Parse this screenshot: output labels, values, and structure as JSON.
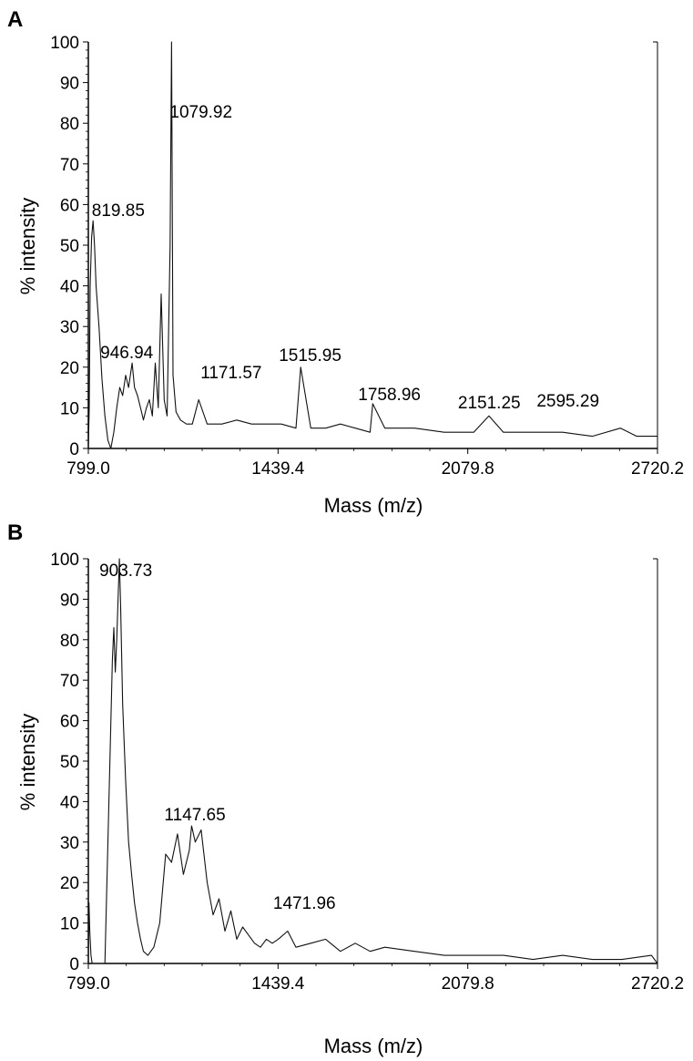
{
  "chart_data": [
    {
      "panel": "A",
      "type": "line",
      "xlabel": "Mass (m/z)",
      "ylabel": "% intensity",
      "xlim": [
        799.0,
        2720.2
      ],
      "ylim": [
        0,
        100
      ],
      "x_ticks": [
        "799.0",
        "1439.4",
        "2079.8",
        "2720.2"
      ],
      "y_ticks": [
        "0",
        "10",
        "20",
        "30",
        "40",
        "50",
        "60",
        "70",
        "80",
        "90",
        "100"
      ],
      "series": [
        {
          "x": [
            799,
            802,
            805,
            810,
            815,
            819.85,
            825,
            835,
            845,
            855,
            865,
            875,
            885,
            895,
            905,
            915,
            925,
            935,
            946.94,
            955,
            965,
            975,
            985,
            995,
            1005,
            1015,
            1025,
            1035,
            1045,
            1055,
            1065,
            1075,
            1079.92,
            1085,
            1095,
            1110,
            1130,
            1150,
            1171.57,
            1200,
            1250,
            1300,
            1350,
            1400,
            1450,
            1500,
            1515.95,
            1550,
            1600,
            1650,
            1700,
            1750,
            1758.96,
            1800,
            1900,
            2000,
            2100,
            2151.25,
            2200,
            2300,
            2400,
            2500,
            2595.29,
            2650,
            2700,
            2720.2
          ],
          "y": [
            0,
            10,
            40,
            52,
            56,
            50,
            40,
            30,
            17,
            8,
            2,
            0,
            4,
            10,
            15,
            13,
            18,
            15,
            21,
            15,
            13,
            10,
            7,
            10,
            12,
            8,
            21,
            10,
            38,
            12,
            8,
            50,
            100,
            18,
            9,
            7,
            6,
            6,
            12,
            6,
            6,
            7,
            6,
            6,
            6,
            5,
            20,
            5,
            5,
            6,
            5,
            4,
            11,
            5,
            5,
            4,
            4,
            8,
            4,
            4,
            4,
            3,
            5,
            3,
            3,
            3
          ]
        }
      ],
      "annotations": [
        {
          "text": "819.85",
          "x": 819.85
        },
        {
          "text": "1079.92",
          "x": 1079.92
        },
        {
          "text": "946.94",
          "x": 946.94
        },
        {
          "text": "1171.57",
          "x": 1171.57
        },
        {
          "text": "1515.95",
          "x": 1515.95
        },
        {
          "text": "1758.96",
          "x": 1758.96
        },
        {
          "text": "2151.25",
          "x": 2151.25
        },
        {
          "text": "2595.29",
          "x": 2595.29
        }
      ],
      "grid": false,
      "legend": "none"
    },
    {
      "panel": "B",
      "type": "line",
      "xlabel": "Mass (m/z)",
      "ylabel": "% intensity",
      "xlim": [
        799.0,
        2720.2
      ],
      "ylim": [
        0,
        100
      ],
      "x_ticks": [
        "799.0",
        "1439.4",
        "2079.8",
        "2720.2"
      ],
      "y_ticks": [
        "0",
        "10",
        "20",
        "30",
        "40",
        "50",
        "60",
        "70",
        "80",
        "90",
        "100"
      ],
      "series": [
        {
          "x": [
            799,
            801,
            804,
            808,
            812,
            820,
            840,
            855,
            865,
            872,
            880,
            885,
            890,
            895,
            903.73,
            908,
            915,
            925,
            935,
            945,
            955,
            965,
            975,
            985,
            1000,
            1020,
            1040,
            1060,
            1080,
            1100,
            1120,
            1140,
            1147.65,
            1160,
            1180,
            1200,
            1220,
            1240,
            1260,
            1280,
            1300,
            1320,
            1340,
            1360,
            1380,
            1400,
            1420,
            1440,
            1471.96,
            1500,
            1550,
            1600,
            1650,
            1700,
            1750,
            1800,
            1900,
            2000,
            2100,
            2200,
            2300,
            2400,
            2500,
            2600,
            2700,
            2720.2
          ],
          "y": [
            0,
            15,
            8,
            2,
            0,
            0,
            0,
            0,
            30,
            50,
            75,
            83,
            72,
            80,
            100,
            88,
            64,
            45,
            30,
            22,
            15,
            10,
            6,
            3,
            2,
            4,
            10,
            27,
            25,
            32,
            22,
            28,
            34,
            30,
            33,
            20,
            12,
            16,
            8,
            13,
            6,
            9,
            7,
            5,
            4,
            6,
            5,
            6,
            8,
            4,
            5,
            6,
            3,
            5,
            3,
            4,
            3,
            2,
            2,
            2,
            1,
            2,
            1,
            1,
            2,
            0
          ]
        }
      ],
      "annotations": [
        {
          "text": "903.73",
          "x": 903.73
        },
        {
          "text": "1147.65",
          "x": 1147.65
        },
        {
          "text": "1471.96",
          "x": 1471.96
        }
      ],
      "grid": false,
      "legend": "none"
    }
  ]
}
